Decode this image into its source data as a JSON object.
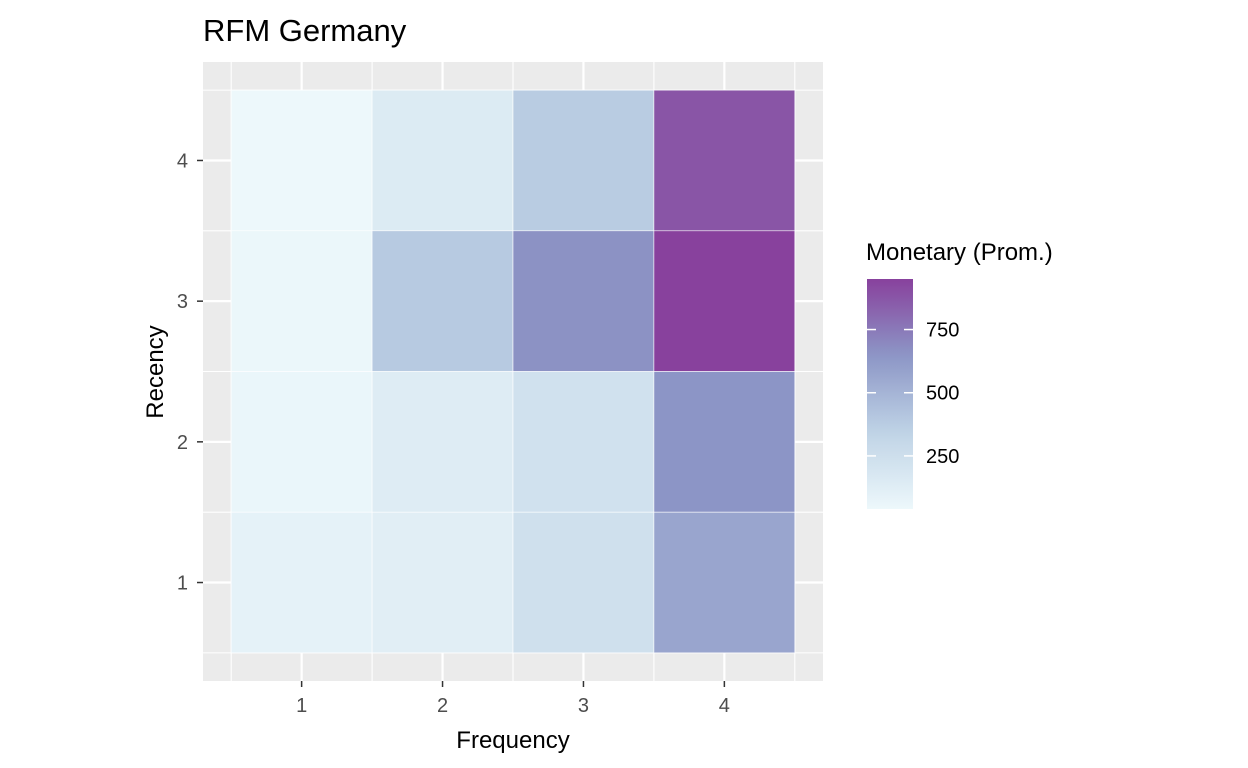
{
  "chart_data": {
    "type": "heatmap",
    "title": "RFM Germany",
    "xlabel": "Frequency",
    "ylabel": "Recency",
    "x_categories": [
      "1",
      "2",
      "3",
      "4"
    ],
    "y_categories": [
      "1",
      "2",
      "3",
      "4"
    ],
    "x_ticks": [
      "1",
      "2",
      "3",
      "4"
    ],
    "y_ticks": [
      "1",
      "2",
      "3",
      "4"
    ],
    "cells": [
      {
        "frequency": 1,
        "recency": 4,
        "value": 40
      },
      {
        "frequency": 2,
        "recency": 4,
        "value": 150
      },
      {
        "frequency": 3,
        "recency": 4,
        "value": 380
      },
      {
        "frequency": 4,
        "recency": 4,
        "value": 880
      },
      {
        "frequency": 1,
        "recency": 3,
        "value": 50
      },
      {
        "frequency": 2,
        "recency": 3,
        "value": 390
      },
      {
        "frequency": 3,
        "recency": 3,
        "value": 660
      },
      {
        "frequency": 4,
        "recency": 3,
        "value": 950
      },
      {
        "frequency": 1,
        "recency": 2,
        "value": 60
      },
      {
        "frequency": 2,
        "recency": 2,
        "value": 140
      },
      {
        "frequency": 3,
        "recency": 2,
        "value": 230
      },
      {
        "frequency": 4,
        "recency": 2,
        "value": 650
      },
      {
        "frequency": 1,
        "recency": 1,
        "value": 90
      },
      {
        "frequency": 2,
        "recency": 1,
        "value": 120
      },
      {
        "frequency": 3,
        "recency": 1,
        "value": 240
      },
      {
        "frequency": 4,
        "recency": 1,
        "value": 570
      }
    ],
    "legend": {
      "title": "Monetary (Prom.)",
      "ticks": [
        250,
        500,
        750
      ],
      "tick_labels": [
        "250",
        "500",
        "750"
      ],
      "range": [
        40,
        950
      ],
      "placement": "right"
    },
    "colors": {
      "low": "#edf8fb",
      "mid_low": "#bfd3e6",
      "mid_high": "#8c96c6",
      "high": "#88419d",
      "panel_background": "#ebebeb",
      "grid": "#ffffff"
    }
  }
}
